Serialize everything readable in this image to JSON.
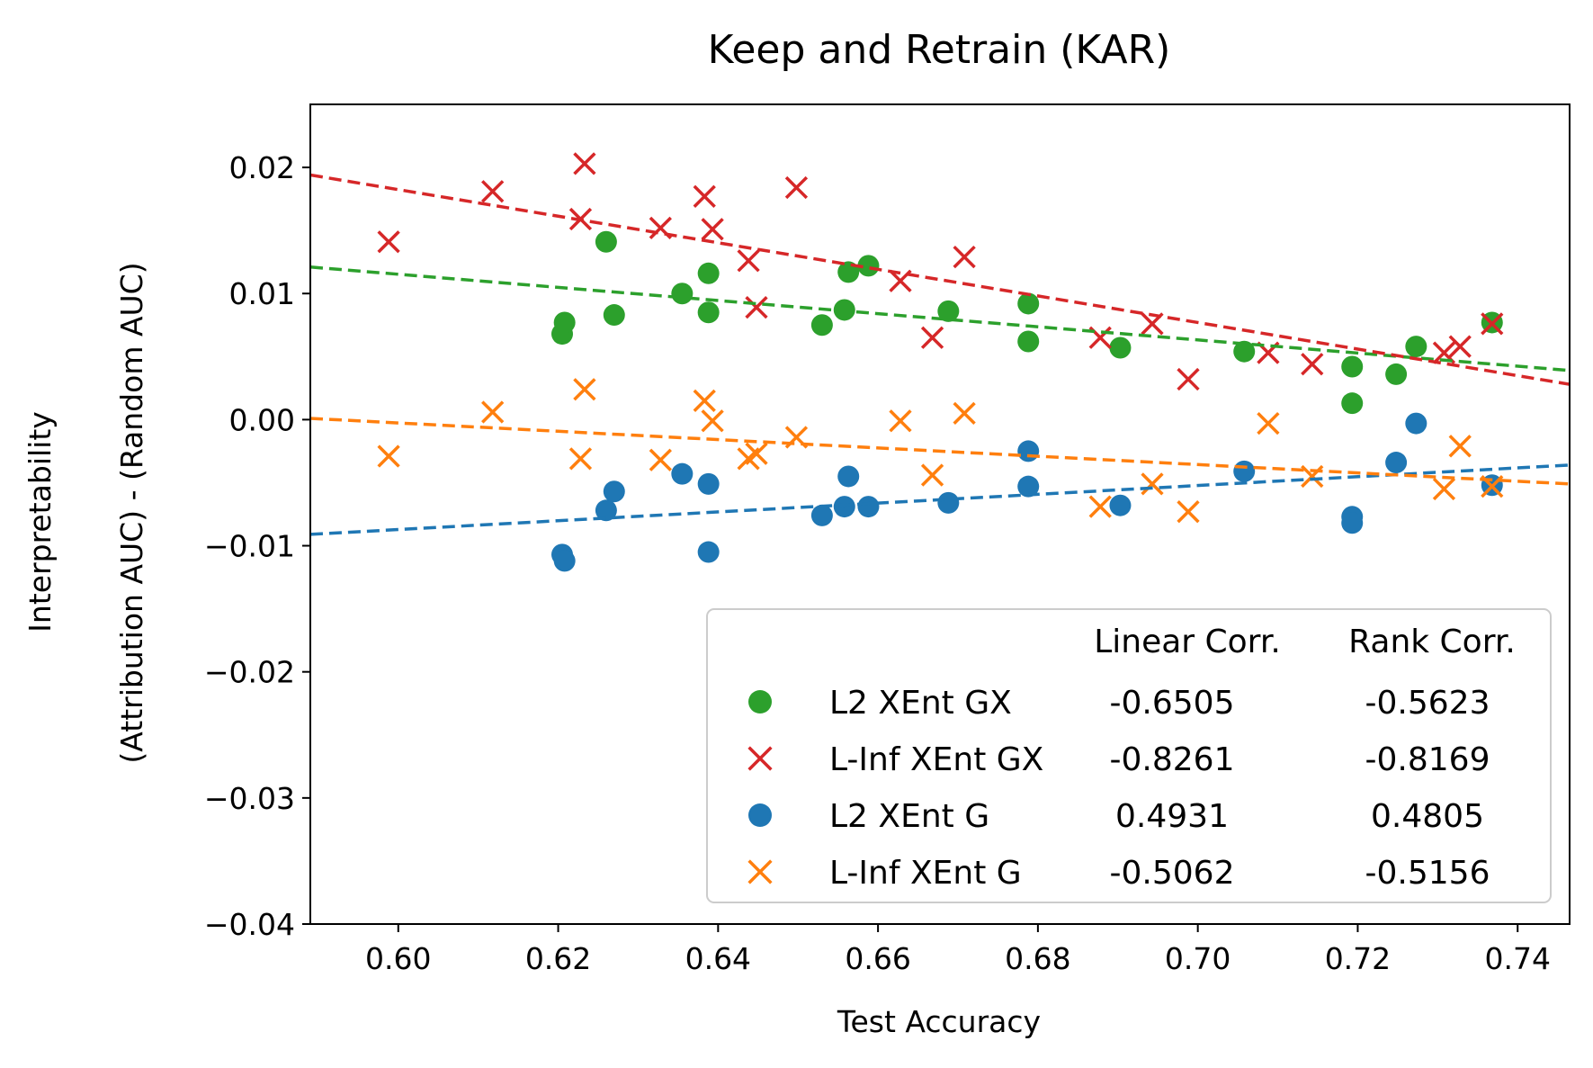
{
  "chart_data": {
    "type": "scatter",
    "title": "Keep and Retrain (KAR)",
    "xlabel": "Test Accuracy",
    "ylabel_lines": [
      "Interpretability",
      "(Attribution AUC) - (Random AUC)"
    ],
    "xlim": [
      0.589,
      0.7465
    ],
    "ylim": [
      -0.04,
      0.025
    ],
    "xticks": [
      0.6,
      0.62,
      0.64,
      0.66,
      0.68,
      0.7,
      0.72,
      0.74
    ],
    "xtick_labels": [
      "0.60",
      "0.62",
      "0.64",
      "0.66",
      "0.68",
      "0.70",
      "0.72",
      "0.74"
    ],
    "yticks": [
      0.02,
      0.01,
      0.0,
      -0.01,
      -0.02,
      -0.03,
      -0.04
    ],
    "ytick_labels": [
      "0.02",
      "0.01",
      "0.00",
      "−0.01",
      "−0.02",
      "−0.03",
      "−0.04"
    ],
    "grid": false,
    "legend": {
      "placement": "lower-right",
      "header": [
        "Linear Corr.",
        "Rank Corr."
      ]
    },
    "series": [
      {
        "name": "L2 XEnt GX",
        "marker": "circle",
        "color": "#2ca02c",
        "linear_corr": "-0.6505",
        "rank_corr": "-0.5623",
        "fit": [
          [
            0.589,
            0.0121
          ],
          [
            0.7465,
            0.0039
          ]
        ],
        "x": [
          0.6205,
          0.6208,
          0.626,
          0.627,
          0.6355,
          0.6388,
          0.6388,
          0.653,
          0.6558,
          0.6563,
          0.6588,
          0.6688,
          0.6788,
          0.6788,
          0.6903,
          0.7058,
          0.7193,
          0.7193,
          0.7248,
          0.7273,
          0.7368
        ],
        "y": [
          0.0068,
          0.0077,
          0.0141,
          0.0083,
          0.01,
          0.0116,
          0.0085,
          0.0075,
          0.0087,
          0.0117,
          0.0122,
          0.0086,
          0.0092,
          0.0062,
          0.0057,
          0.0054,
          0.0042,
          0.0013,
          0.0036,
          0.0058,
          0.0077
        ]
      },
      {
        "name": "L-Inf XEnt GX",
        "marker": "x",
        "color": "#d62728",
        "linear_corr": "-0.8261",
        "rank_corr": "-0.8169",
        "fit": [
          [
            0.589,
            0.0194
          ],
          [
            0.7465,
            0.0028
          ]
        ],
        "x": [
          0.5988,
          0.6118,
          0.6228,
          0.6233,
          0.6328,
          0.6383,
          0.6393,
          0.6438,
          0.6448,
          0.6498,
          0.6628,
          0.6668,
          0.6708,
          0.6878,
          0.6943,
          0.6988,
          0.7088,
          0.7143,
          0.7308,
          0.7328,
          0.7368
        ],
        "y": [
          0.0141,
          0.0181,
          0.0159,
          0.0203,
          0.0152,
          0.0177,
          0.0151,
          0.0126,
          0.0089,
          0.0184,
          0.011,
          0.0065,
          0.0129,
          0.0065,
          0.0076,
          0.0032,
          0.0053,
          0.0044,
          0.0053,
          0.0058,
          0.0076
        ]
      },
      {
        "name": "L2 XEnt G",
        "marker": "circle",
        "color": "#1f77b4",
        "linear_corr": "0.4931",
        "rank_corr": "0.4805",
        "fit": [
          [
            0.589,
            -0.0091
          ],
          [
            0.7465,
            -0.0036
          ]
        ],
        "x": [
          0.6205,
          0.6208,
          0.626,
          0.627,
          0.6355,
          0.6388,
          0.6388,
          0.653,
          0.6558,
          0.6563,
          0.6588,
          0.6688,
          0.6788,
          0.6788,
          0.6903,
          0.7058,
          0.7193,
          0.7193,
          0.7248,
          0.7273,
          0.7368
        ],
        "y": [
          -0.0107,
          -0.0112,
          -0.0072,
          -0.0057,
          -0.0043,
          -0.0105,
          -0.0051,
          -0.0076,
          -0.0069,
          -0.0045,
          -0.0069,
          -0.0066,
          -0.0025,
          -0.0053,
          -0.0068,
          -0.0041,
          -0.0077,
          -0.0082,
          -0.0034,
          -0.0003,
          -0.0052
        ]
      },
      {
        "name": "L-Inf XEnt G",
        "marker": "x",
        "color": "#ff7f0e",
        "linear_corr": "-0.5062",
        "rank_corr": "-0.5156",
        "fit": [
          [
            0.589,
            0.0001
          ],
          [
            0.7465,
            -0.0051
          ]
        ],
        "x": [
          0.5988,
          0.6118,
          0.6228,
          0.6233,
          0.6328,
          0.6383,
          0.6393,
          0.6438,
          0.6448,
          0.6498,
          0.6628,
          0.6668,
          0.6708,
          0.6878,
          0.6943,
          0.6988,
          0.7088,
          0.7143,
          0.7308,
          0.7328,
          0.7368
        ],
        "y": [
          -0.0029,
          0.0006,
          -0.0031,
          0.0024,
          -0.0032,
          0.0015,
          -0.0001,
          -0.0031,
          -0.0027,
          -0.0014,
          -0.0001,
          -0.0044,
          0.0005,
          -0.0069,
          -0.0051,
          -0.0073,
          -0.0003,
          -0.0045,
          -0.0055,
          -0.0021,
          -0.0053
        ]
      }
    ]
  }
}
